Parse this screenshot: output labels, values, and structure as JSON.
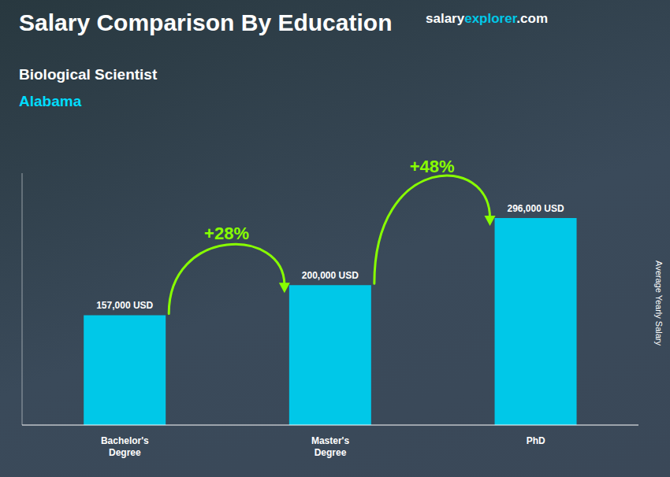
{
  "chart_data": {
    "type": "bar",
    "title": "Salary Comparison By Education",
    "subtitle": "Biological Scientist",
    "location": "Alabama",
    "brand": [
      "salary",
      "explorer",
      ".com"
    ],
    "ylabel": "Average Yearly Salary",
    "categories": [
      "Bachelor's\nDegree",
      "Master's\nDegree",
      "PhD"
    ],
    "values": [
      157000,
      200000,
      296000
    ],
    "value_labels": [
      "157,000 USD",
      "200,000 USD",
      "296,000 USD"
    ],
    "data_labels": true,
    "annotations": [
      "+28%",
      "+48%"
    ],
    "color": "#00c8e8",
    "ylim": [
      0,
      360000
    ],
    "tick_labels": "x"
  }
}
